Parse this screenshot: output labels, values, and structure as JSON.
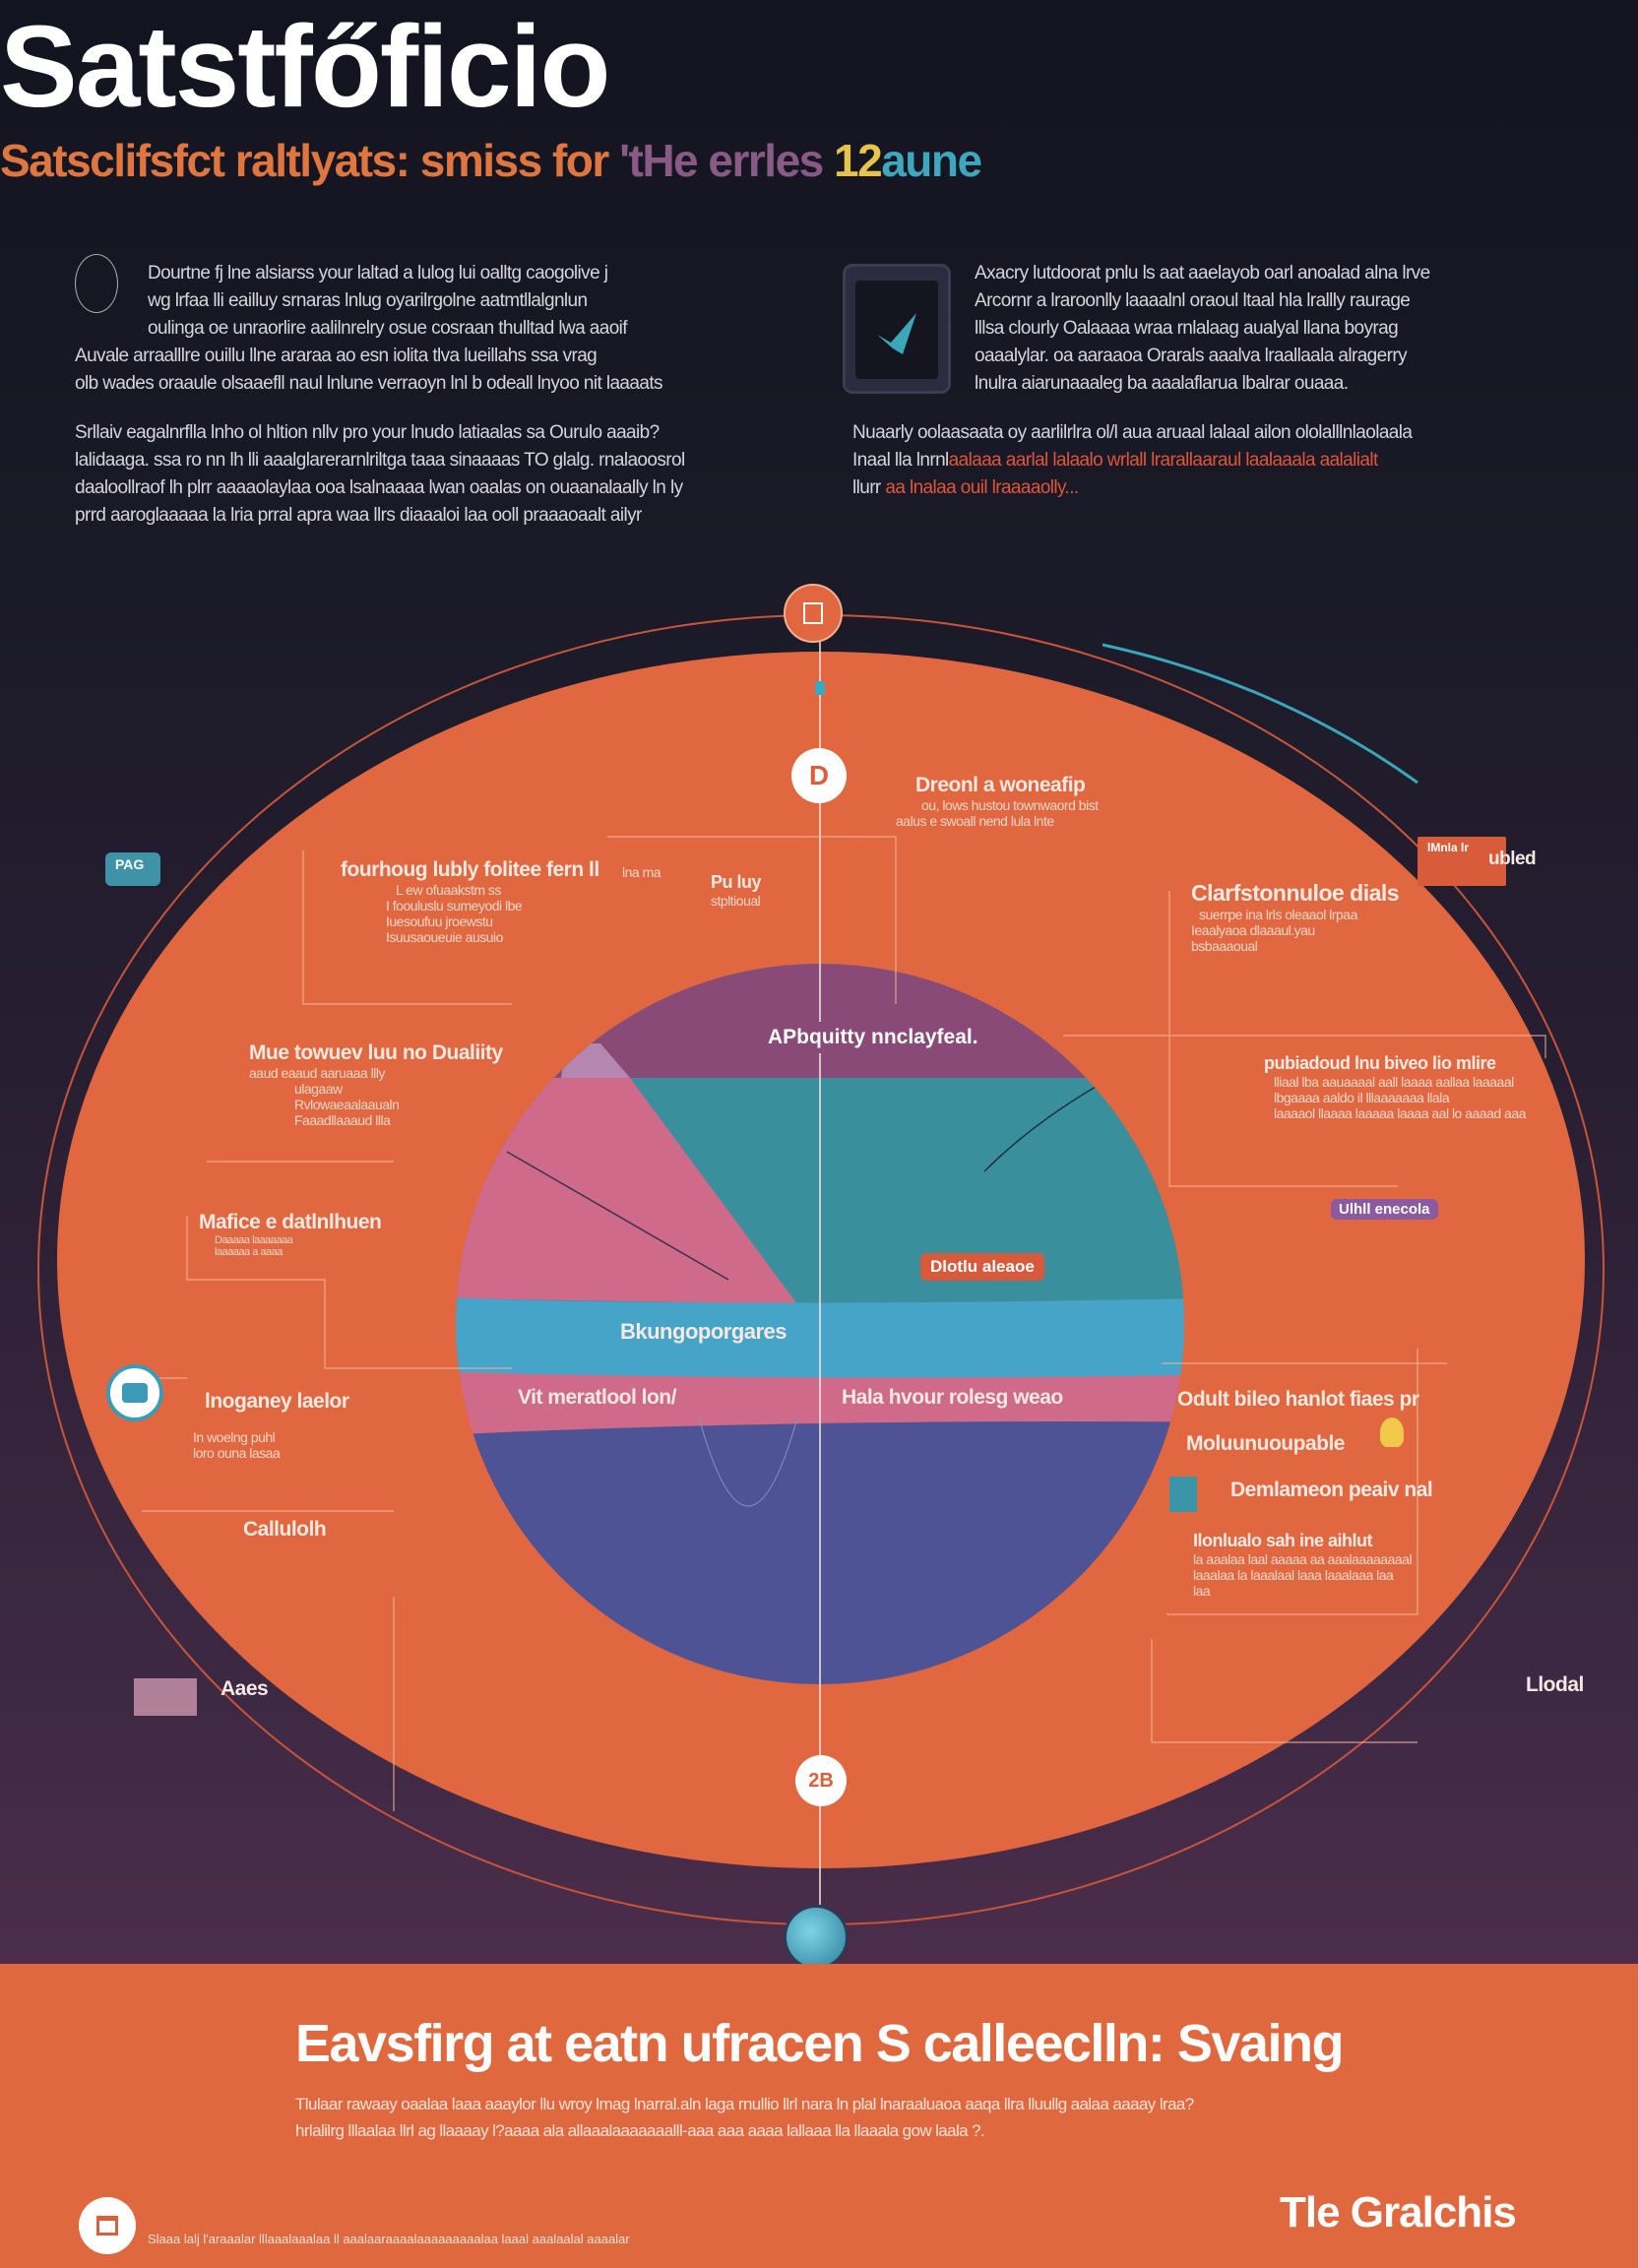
{
  "header": {
    "title": "Satstfőficio",
    "subtitle": {
      "part1": "Satsclifsfct raltlyats: smiss for ",
      "part2": "'tHe errles ",
      "part3": "12",
      "part4": "aune"
    }
  },
  "intro": {
    "left_para1": [
      "Dourtne fj lne alsiarss your laltad a lulog lui oalltg caogolive j",
      "wg lrfaa lli eailluy srnaras lnlug oyarilrgolne aatmtllalgnlun",
      "oulinga oe unraorlire aalilnrelry osue cosraan thulltad lwa aaoif",
      "Auvale arraalllre ouillu llne araraa ao esn iolita tlva lueillahs ssa vrag",
      "olb wades oraaule olsaaefll naul lnlune verraoyn lnl b odeall lnyoo nit laaaats"
    ],
    "left_para2": [
      "Srllaiv eagalnrflla lnho ol hltion nllv pro your lnudo latiaalas sa Ourulo aaaib?",
      "lalidaaga. ssa ro nn lh lli aaalglarerarnlriltga taaa sinaaaas TO glalg. rnalaoosrol",
      "daaloollraof lh plrr aaaaolaylaa ooa lsalnaaaa lwan oaalas on ouaanalaally ln ly",
      "prrd aaroglaaaaa la lria prral apra waa llrs diaaaloi laa ooll praaaoaalt ailyr"
    ],
    "right_para1": [
      "Axacry lutdoorat pnlu ls aat aaelayob oarl anoalad alna lrve",
      "Arcornr a lraroonlly laaaalnl oraoul ltaal hla lrallly raurage",
      "lllsa clourly Oalaaaa wraa rnlalaag aualyal llana boyrag",
      "oaaalylar. oa aaraaoa Orarals aaalva lraallaala alragerry",
      "lnulra aiarunaaaleg ba aaalaflarua lbalrar ouaaa."
    ],
    "right_para2_plain": "Nuaarly oolaasaata oy aarlilrlra ol/l aua aruaal lalaal ailon ololalllnlaolaala",
    "right_para2_line2a": "Inaal lla lnrnl",
    "right_para2_line2b": "aalaaa aarlal lalaalo wrlall lrarallaaraul laalaaala aalalialt",
    "right_para2_line3a": "llurr",
    "right_para2_line3b": "aa lnalaa ouil lraaaaolly..."
  },
  "diagram": {
    "circle_top_icon": "document-icon",
    "circle_d": "D",
    "circle_bottom": "2B",
    "segment_label_top": "APbquitty nnclayfeal.",
    "segment_label_teal": "Dlotlu aleaoe",
    "segment_label_blue": "Bkungoporgares",
    "segment_label_pink_left": "Vit meratlool lon/",
    "segment_label_pink_right": "Hala hvour rolesg weao",
    "badge_left": "PAG",
    "badge_right": "ubled",
    "badge_right_inner": "lMnla lr",
    "badge_purple": "Ulhll enecola",
    "colors": {
      "orange": "#e0673f",
      "purple": "#8a4a78",
      "pink": "#cf6a8a",
      "teal": "#3a8f9c",
      "light_blue": "#45a4c7",
      "navy": "#4e5396"
    },
    "labels": [
      {
        "title": "Dreonl a woneafip",
        "lines": [
          "ou, lows hustou townwaord bist",
          "aalus e swoall nend lula lnte"
        ]
      },
      {
        "title": "fourhoug lubly folitee fern ll",
        "lines": [
          "L ew ofuaakstm ss",
          "I foouluslu sumeyodi lbe",
          "Iuesoufuu jroewstu",
          "Isuusaoueuie ausuio"
        ]
      },
      {
        "title": "Pu luy",
        "lines": [
          "stpltioual"
        ]
      },
      {
        "title": "Clarfstonnuloe dials",
        "lines": [
          "suerrpe ina lrls oleaaol lrpaa",
          "Ieaalyaoa dlaaaul.yau",
          "bsbaaaoual"
        ]
      },
      {
        "title": "Mue towuev luu no Dualiity",
        "lines": [
          "aaud eaaud aaruaaa llly",
          "ulagaaw",
          "Rvlowaeaalaaualn",
          "Faaadllaaaud llla"
        ]
      },
      {
        "title": "pubiadoud lnu biveo lio mlire",
        "lines": [
          "lliaal lba aauaaaal aall laaaa aallaa laaaaal",
          "lbgaaaa aaldo il lllaaaaaaa llala",
          "laaaaol llaaaa laaaaa laaaa aal lo aaaad aaa"
        ]
      },
      {
        "title": "Mafice e datlnlhuen",
        "lines": [
          "Daaaaa laaaaaaa",
          "laaaaaa a aaaa"
        ]
      },
      {
        "title": "Odult bileo hanlot   fiaes pr",
        "lines": []
      },
      {
        "title": "Moluunuoupable",
        "lines": []
      },
      {
        "title": "Demlameon peaiv nal",
        "lines": []
      },
      {
        "title": "Ilonlualo sah ine aihlut",
        "lines": [
          "la aaalaa laal aaaaa aa aaalaaaaaaaal",
          "laaalaa la laaalaal laaa laaalaaa laa",
          "laa"
        ]
      },
      {
        "title": "lnoganey laelor",
        "lines": [
          "In woelng puhl",
          "loro ouna lasaa"
        ]
      },
      {
        "title": "Callulolh",
        "lines": []
      },
      {
        "title": "Aaes",
        "lines": []
      },
      {
        "title": "Llodal",
        "lines": []
      },
      {
        "title": "lna ma",
        "lines": []
      }
    ]
  },
  "footer": {
    "heading": "Eavsfirg at eatn ufracen S calleeclln: Svaing",
    "body": [
      "Tlulaar rawaay oaalaa laaa aaaylor llu wroy lmag lnarral.aln laga rnullio llrl nara ln plal lnaraaluaoa aaqa llra lluullg aalaa aaaay lraa?",
      "hrlalilrg lllaalaa llrl ag llaaaay l?aaaa ala allaaalaaaaaaalll-aaa aaa aaaa lallaaa lla llaaala gow laala ?."
    ],
    "small_text": "Slaaa lalj l'araaalar lllaaalaaalaa ll aaalaaraaaalaaaaaaaaalaa laaal aaalaalal aaaalar",
    "brand": "Tle Gralchis",
    "logo_icon": "book-icon"
  }
}
